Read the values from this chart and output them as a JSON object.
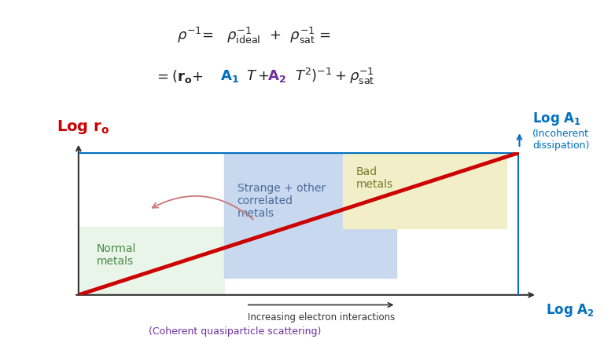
{
  "fig_width": 7.68,
  "fig_height": 4.32,
  "bg_color": "#ffffff",
  "y_label_color": "#cc0000",
  "x_label_main_color": "#0070c0",
  "x_label_sub": "(Coherent quasiparticle scattering)",
  "x_label_sub_color": "#7030a0",
  "a1_label_color": "#0070c0",
  "a1_sub": "(Incoherent\ndissipation)",
  "horizontal_line_color": "#0070c0",
  "horizontal_line_lw": 3,
  "diagonal_line_color": "#cc0000",
  "diagonal_line_lw": 3.5,
  "normal_metals_color": "#e8f5e8",
  "normal_metals_label": "Normal\nmetals",
  "normal_metals_label_color": "#4a8a4a",
  "strange_metals_color": "#c8d8ee",
  "strange_metals_label": "Strange + other\ncorrelated\nmetals",
  "strange_metals_label_color": "#4a6a9a",
  "bad_metals_color": "#f2eec8",
  "bad_metals_label": "Bad\nmetals",
  "bad_metals_label_color": "#7a7a2a",
  "arrow_text": "Increasing electron interactions",
  "arrow_color": "#333333",
  "curved_arrow_color": "#cc7777"
}
